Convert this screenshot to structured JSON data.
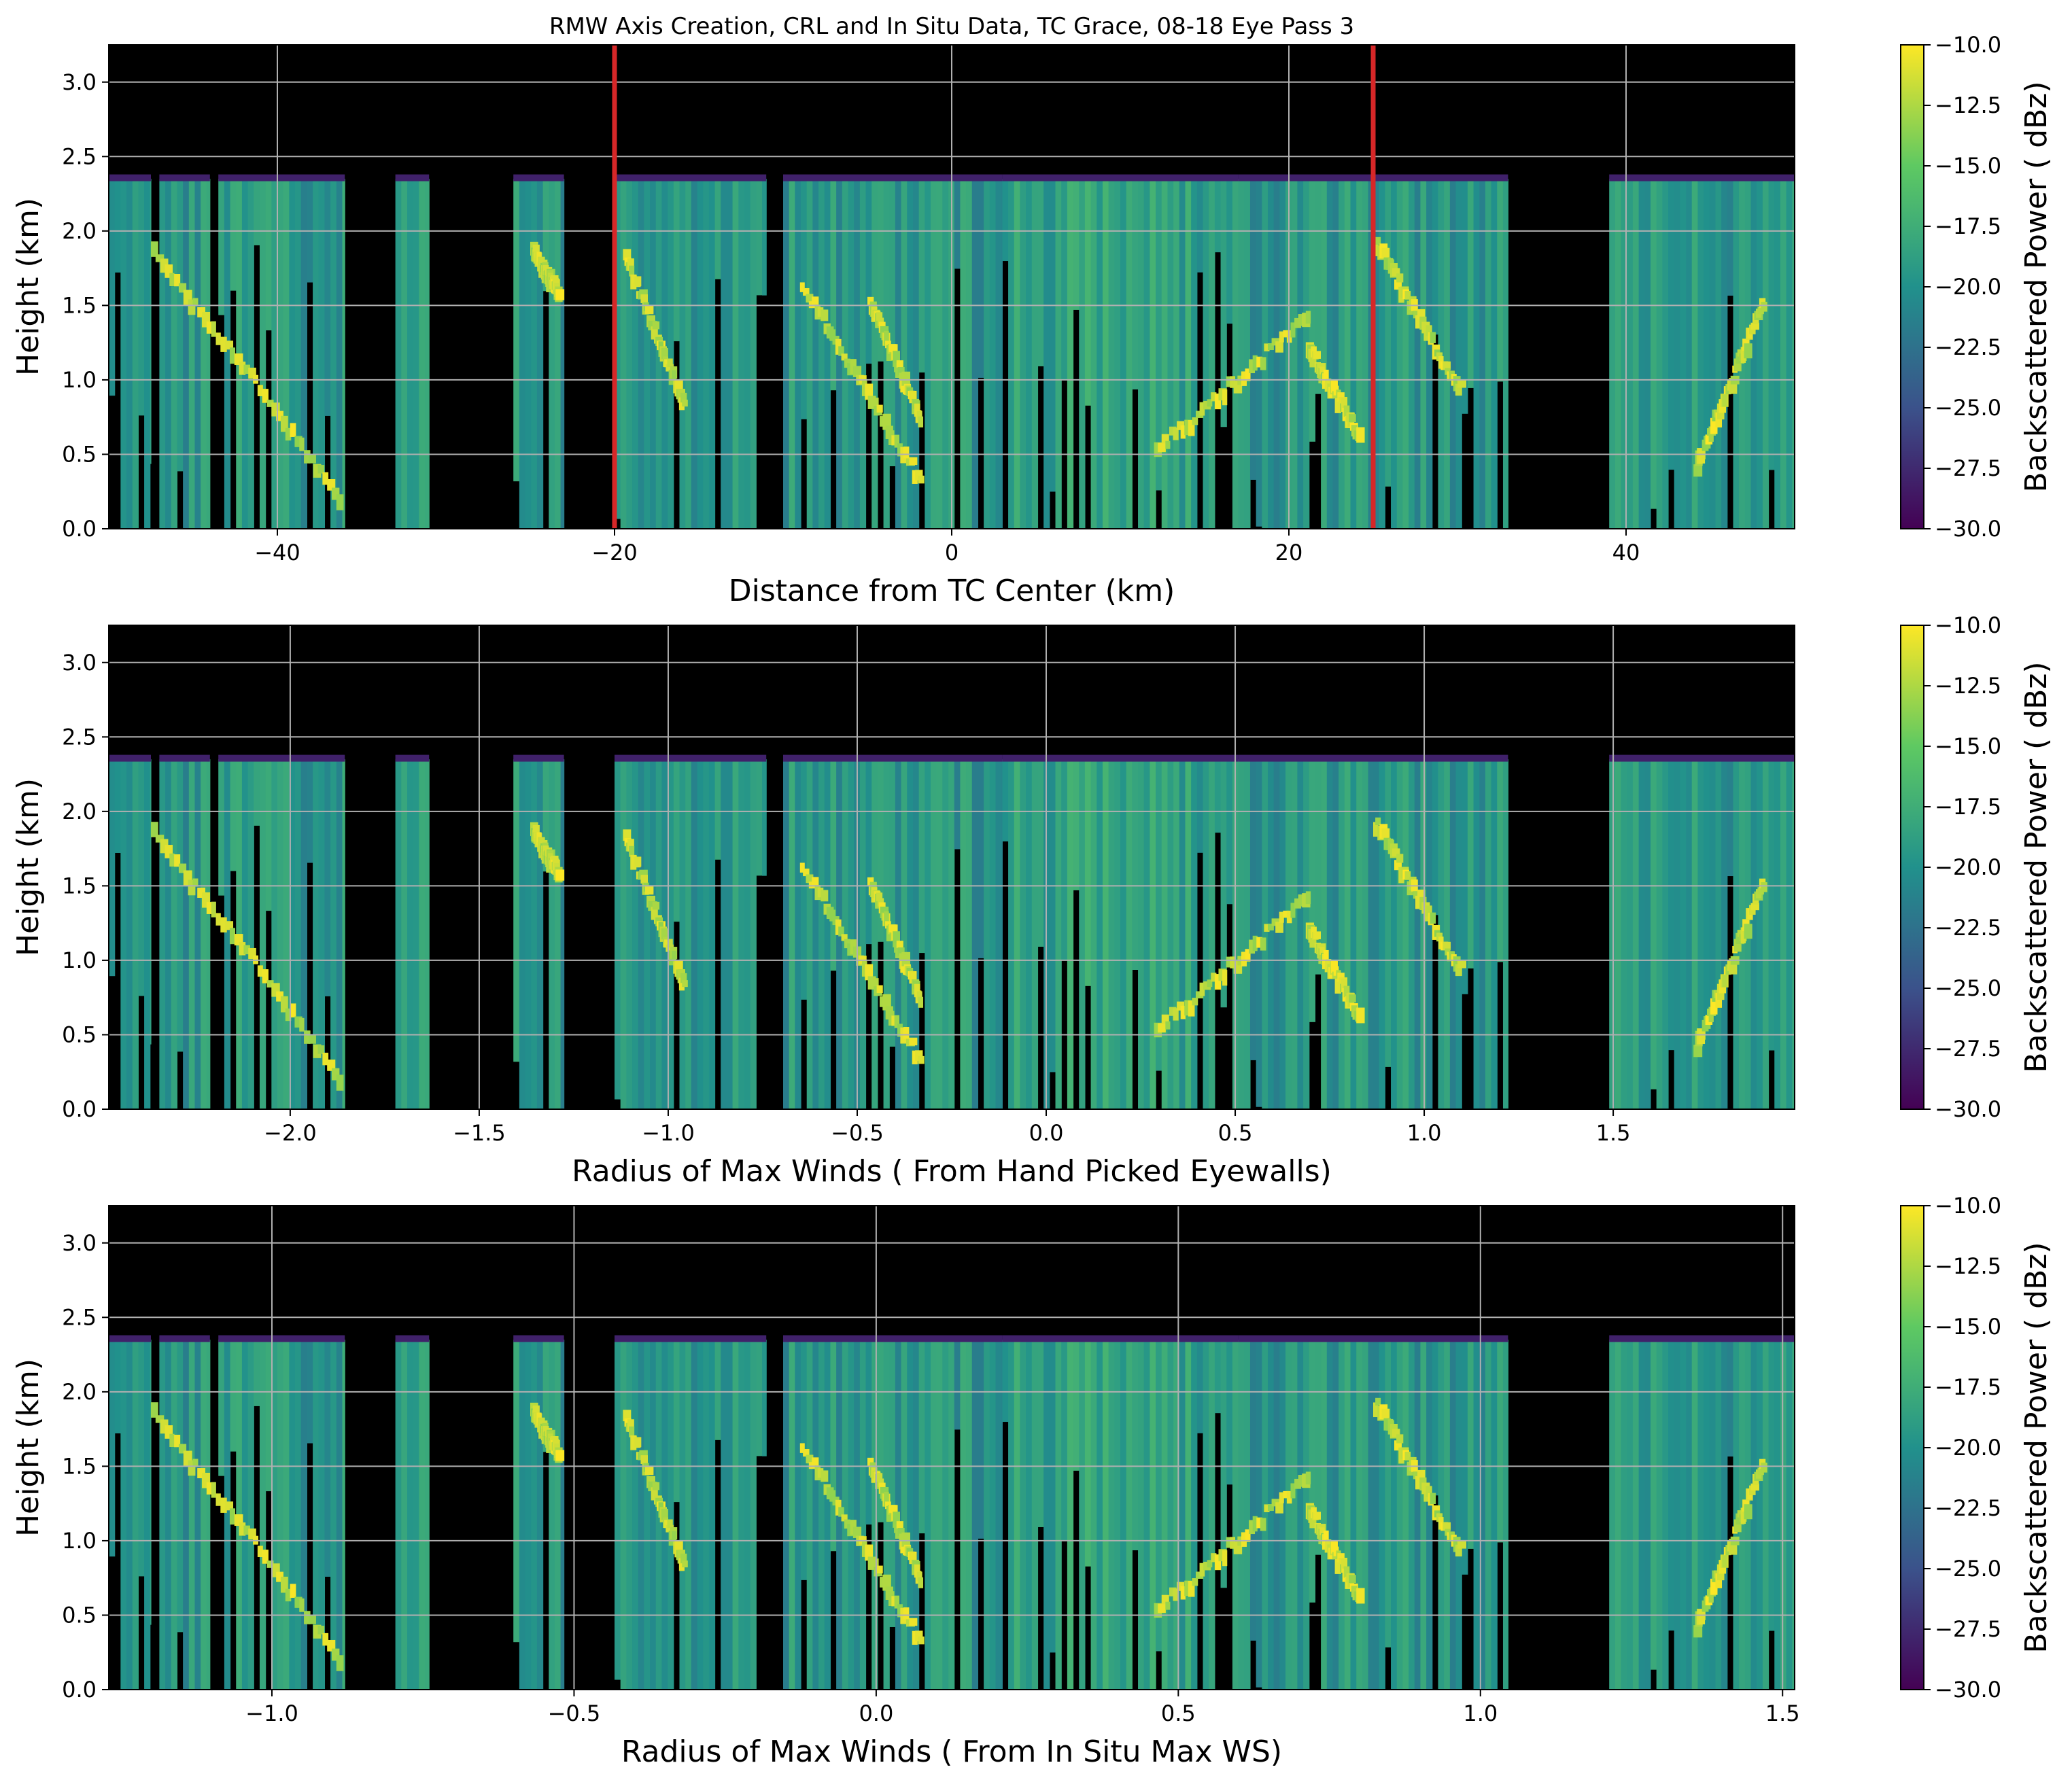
{
  "title": "RMW Axis Creation, CRL and In Situ Data, TC Grace, 08-18 Eye Pass 3",
  "colormap": [
    "#440154",
    "#3b528b",
    "#21918c",
    "#5ec962",
    "#fde725"
  ],
  "chart_data": [
    {
      "type": "heatmap",
      "xlabel": "Distance from TC Center (km)",
      "ylabel": "Height (km)",
      "xlim": [
        -50,
        50
      ],
      "ylim": [
        0,
        3.25
      ],
      "xticks": [
        -40,
        -20,
        0,
        20,
        40
      ],
      "xtick_labels": [
        "−40",
        "−20",
        "0",
        "20",
        "40"
      ],
      "yticks": [
        0.0,
        0.5,
        1.0,
        1.5,
        2.0,
        2.5,
        3.0
      ],
      "ytick_labels": [
        "0.0",
        "0.5",
        "1.0",
        "1.5",
        "2.0",
        "2.5",
        "3.0"
      ],
      "grid": true,
      "vlines": [
        {
          "x": -20,
          "color": "#d62728"
        },
        {
          "x": 25,
          "color": "#d62728"
        }
      ],
      "colorbar": {
        "label": "Backscattered Power ( dBz)",
        "range": [
          -30,
          -10
        ],
        "ticks": [
          -10,
          -12.5,
          -15,
          -17.5,
          -20,
          -22.5,
          -25,
          -27.5,
          -30
        ],
        "tick_labels": [
          "−10.0",
          "−12.5",
          "−15.0",
          "−17.5",
          "−20.0",
          "−22.5",
          "−25.0",
          "−27.5",
          "−30.0"
        ]
      },
      "echo_top_km": 2.35,
      "echo_columns": [
        [
          -50,
          -47.5
        ],
        [
          -47,
          -44
        ],
        [
          -43.5,
          -36
        ],
        [
          -33,
          -31
        ],
        [
          -26,
          -23
        ],
        [
          -20,
          -11
        ],
        [
          -10,
          3
        ],
        [
          3,
          17
        ],
        [
          17,
          25
        ],
        [
          25,
          33
        ],
        [
          39,
          50
        ]
      ],
      "bright_bands": [
        {
          "x": [
            -47.5,
            -36.5
          ],
          "y": [
            1.85,
            0.2
          ]
        },
        {
          "x": [
            -25,
            -23.5
          ],
          "y": [
            1.85,
            1.55
          ]
        },
        {
          "x": [
            -19.5,
            -16
          ],
          "y": [
            1.8,
            0.8
          ]
        },
        {
          "x": [
            -9,
            -2
          ],
          "y": [
            1.6,
            0.3
          ]
        },
        {
          "x": [
            -5,
            -2
          ],
          "y": [
            1.5,
            0.7
          ]
        },
        {
          "x": [
            12,
            21
          ],
          "y": [
            0.5,
            1.4
          ]
        },
        {
          "x": [
            21,
            24
          ],
          "y": [
            1.2,
            0.6
          ]
        },
        {
          "x": [
            25,
            30
          ],
          "y": [
            1.9,
            0.9
          ]
        },
        {
          "x": [
            44,
            48
          ],
          "y": [
            0.4,
            1.5
          ]
        }
      ]
    },
    {
      "type": "heatmap",
      "xlabel": "Radius of Max Winds ( From Hand Picked Eyewalls)",
      "ylabel": "Height (km)",
      "xlim": [
        -2.48,
        1.98
      ],
      "ylim": [
        0,
        3.25
      ],
      "xticks": [
        -2.0,
        -1.5,
        -1.0,
        -0.5,
        0.0,
        0.5,
        1.0,
        1.5
      ],
      "xtick_labels": [
        "−2.0",
        "−1.5",
        "−1.0",
        "−0.5",
        "0.0",
        "0.5",
        "1.0",
        "1.5"
      ],
      "yticks": [
        0.0,
        0.5,
        1.0,
        1.5,
        2.0,
        2.5,
        3.0
      ],
      "ytick_labels": [
        "0.0",
        "0.5",
        "1.0",
        "1.5",
        "2.0",
        "2.5",
        "3.0"
      ],
      "grid": true,
      "colorbar": {
        "label": "Backscattered Power ( dBz)",
        "range": [
          -30,
          -10
        ],
        "ticks": [
          -10,
          -12.5,
          -15,
          -17.5,
          -20,
          -22.5,
          -25,
          -27.5,
          -30
        ],
        "tick_labels": [
          "−10.0",
          "−12.5",
          "−15.0",
          "−17.5",
          "−20.0",
          "−22.5",
          "−25.0",
          "−27.5",
          "−30.0"
        ]
      }
    },
    {
      "type": "heatmap",
      "xlabel": "Radius of Max Winds ( From In Situ Max WS)",
      "ylabel": "Height (km)",
      "xlim": [
        -1.27,
        1.52
      ],
      "ylim": [
        0,
        3.25
      ],
      "xticks": [
        -1.0,
        -0.5,
        0.0,
        0.5,
        1.0,
        1.5
      ],
      "xtick_labels": [
        "−1.0",
        "−0.5",
        "0.0",
        "0.5",
        "1.0",
        "1.5"
      ],
      "yticks": [
        0.0,
        0.5,
        1.0,
        1.5,
        2.0,
        2.5,
        3.0
      ],
      "ytick_labels": [
        "0.0",
        "0.5",
        "1.0",
        "1.5",
        "2.0",
        "2.5",
        "3.0"
      ],
      "grid": true,
      "colorbar": {
        "label": "Backscattered Power ( dBz)",
        "range": [
          -30,
          -10
        ],
        "ticks": [
          -10,
          -12.5,
          -15,
          -17.5,
          -20,
          -22.5,
          -25,
          -27.5,
          -30
        ],
        "tick_labels": [
          "−10.0",
          "−12.5",
          "−15.0",
          "−17.5",
          "−20.0",
          "−22.5",
          "−25.0",
          "−27.5",
          "−30.0"
        ]
      }
    }
  ]
}
